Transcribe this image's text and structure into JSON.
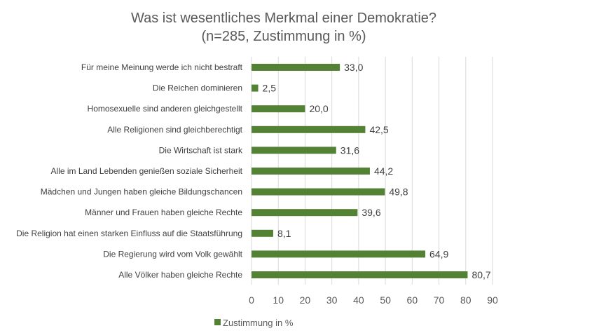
{
  "chart_data": {
    "type": "bar",
    "orientation": "horizontal",
    "title": "Was ist wesentliches Merkmal einer Demokratie?",
    "subtitle": "(n=285, Zustimmung in %)",
    "categories": [
      "Für meine Meinung werde ich nicht bestraft",
      "Die Reichen dominieren",
      "Homosexuelle sind anderen gleichgestellt",
      "Alle Religionen sind gleichberechtigt",
      "Die Wirtschaft ist stark",
      "Alle im Land Lebenden genießen soziale Sicherheit",
      "Mädchen und Jungen haben gleiche Bildungschancen",
      "Männer und Frauen haben gleiche Rechte",
      "Die Religion hat einen starken Einfluss auf die Staatsführung",
      "Die Regierung wird vom Volk gewählt",
      "Alle Völker haben gleiche Rechte"
    ],
    "series": [
      {
        "name": "Zustimmung in %",
        "values": [
          33.0,
          2.5,
          20.0,
          42.5,
          31.6,
          44.2,
          49.8,
          39.6,
          8.1,
          64.9,
          80.7
        ],
        "data_labels": [
          "33,0",
          "2,5",
          "20,0",
          "42,5",
          "31,6",
          "44,2",
          "49,8",
          "39,6",
          "8,1",
          "64,9",
          "80,7"
        ],
        "color": "#548235"
      }
    ],
    "xlim": [
      0,
      90
    ],
    "xticks": [
      "0",
      "10",
      "20",
      "30",
      "40",
      "50",
      "60",
      "70",
      "80",
      "90"
    ],
    "grid": "vertical",
    "grid_color": "#d9d9d9",
    "legend": "bottom-left"
  }
}
